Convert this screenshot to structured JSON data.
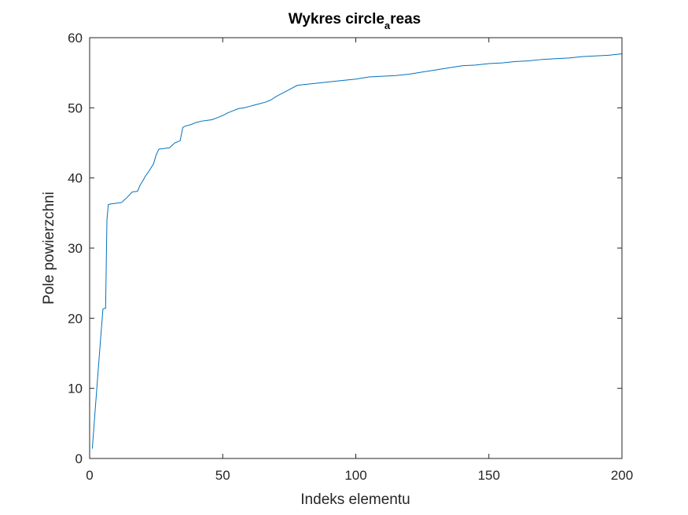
{
  "chart_data": {
    "type": "line",
    "title": "Wykres circle_areas",
    "title_parts": {
      "main": "Wykres circle",
      "subscript": "a",
      "rest": "reas"
    },
    "xlabel": "Indeks elementu",
    "ylabel": "Pole powierzchni",
    "xlim": [
      0,
      200
    ],
    "ylim": [
      0,
      60
    ],
    "xticks": [
      0,
      50,
      100,
      150,
      200
    ],
    "yticks": [
      0,
      10,
      20,
      30,
      40,
      50,
      60
    ],
    "grid": false,
    "series": [
      {
        "color": "#0072BD",
        "x": [
          1,
          2,
          3,
          4,
          5,
          5.5,
          6,
          6.5,
          7,
          8,
          10,
          12,
          14,
          16,
          18,
          19,
          20,
          21,
          22,
          23,
          24,
          25,
          26,
          28,
          30,
          32,
          34,
          35,
          36,
          38,
          40,
          42,
          44,
          46,
          48,
          50,
          52,
          54,
          56,
          58,
          60,
          62,
          64,
          66,
          68,
          70,
          72,
          74,
          76,
          78,
          80,
          85,
          90,
          95,
          100,
          105,
          110,
          115,
          120,
          125,
          130,
          135,
          140,
          145,
          150,
          155,
          160,
          165,
          170,
          175,
          180,
          185,
          190,
          195,
          200
        ],
        "y": [
          1.4,
          6.5,
          11.5,
          16.5,
          21.3,
          21.4,
          21.4,
          34.0,
          36.2,
          36.3,
          36.4,
          36.5,
          37.2,
          38.0,
          38.1,
          39.0,
          39.6,
          40.3,
          40.8,
          41.4,
          42.0,
          43.3,
          44.1,
          44.2,
          44.3,
          45.0,
          45.3,
          47.2,
          47.4,
          47.6,
          47.9,
          48.1,
          48.2,
          48.3,
          48.6,
          48.9,
          49.3,
          49.6,
          49.9,
          50.0,
          50.2,
          50.4,
          50.6,
          50.8,
          51.1,
          51.6,
          52.0,
          52.4,
          52.8,
          53.2,
          53.3,
          53.5,
          53.7,
          53.9,
          54.1,
          54.4,
          54.5,
          54.6,
          54.8,
          55.1,
          55.4,
          55.7,
          56.0,
          56.1,
          56.3,
          56.4,
          56.6,
          56.7,
          56.9,
          57.0,
          57.1,
          57.3,
          57.4,
          57.5,
          57.7
        ]
      }
    ]
  }
}
